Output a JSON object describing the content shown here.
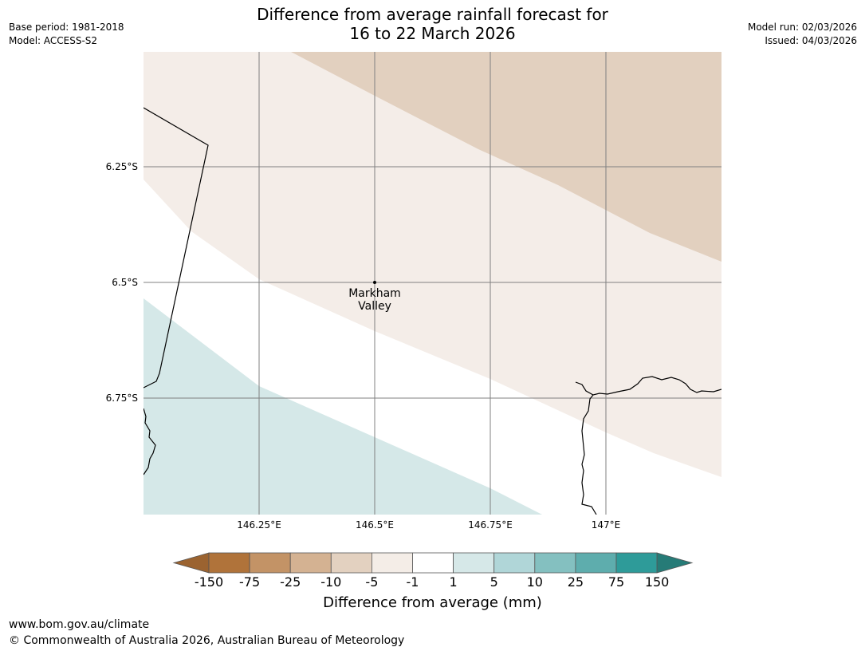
{
  "header": {
    "title_line1": "Difference from average rainfall forecast for",
    "title_line2": "16 to 22 March 2026",
    "base_period": "Base period: 1981-2018",
    "model": "Model: ACCESS-S2",
    "model_run": "Model run: 02/03/2026",
    "issued": "Issued: 04/03/2026"
  },
  "map": {
    "lat_labels": [
      "6.25°S",
      "6.5°S",
      "6.75°S"
    ],
    "lon_labels": [
      "146.25°E",
      "146.5°E",
      "146.75°E",
      "147°E"
    ],
    "place": {
      "name_line1": "Markham",
      "name_line2": "Valley",
      "lon": 146.5,
      "lat": -6.5
    }
  },
  "legend": {
    "title": "Difference from average (mm)",
    "tick_labels": [
      "-150",
      "-75",
      "-25",
      "-10",
      "-5",
      "-1",
      "1",
      "5",
      "10",
      "25",
      "75",
      "150"
    ],
    "colors": [
      "#9b6330",
      "#b0733a",
      "#c39366",
      "#d4b292",
      "#e3d1c0",
      "#f4ede7",
      "#ffffff",
      "#d6e8e8",
      "#b0d6d8",
      "#84c0c0",
      "#5eadad",
      "#2e9b99",
      "#267b77"
    ],
    "map_colors": {
      "dry_medium": "#e2d0bf",
      "dry_light": "#f4ede8",
      "neutral": "#ffffff",
      "wet_light": "#d5e8e8"
    }
  },
  "footer": {
    "url": "www.bom.gov.au/climate",
    "copyright": "© Commonwealth of Australia 2026, Australian Bureau of Meteorology"
  }
}
